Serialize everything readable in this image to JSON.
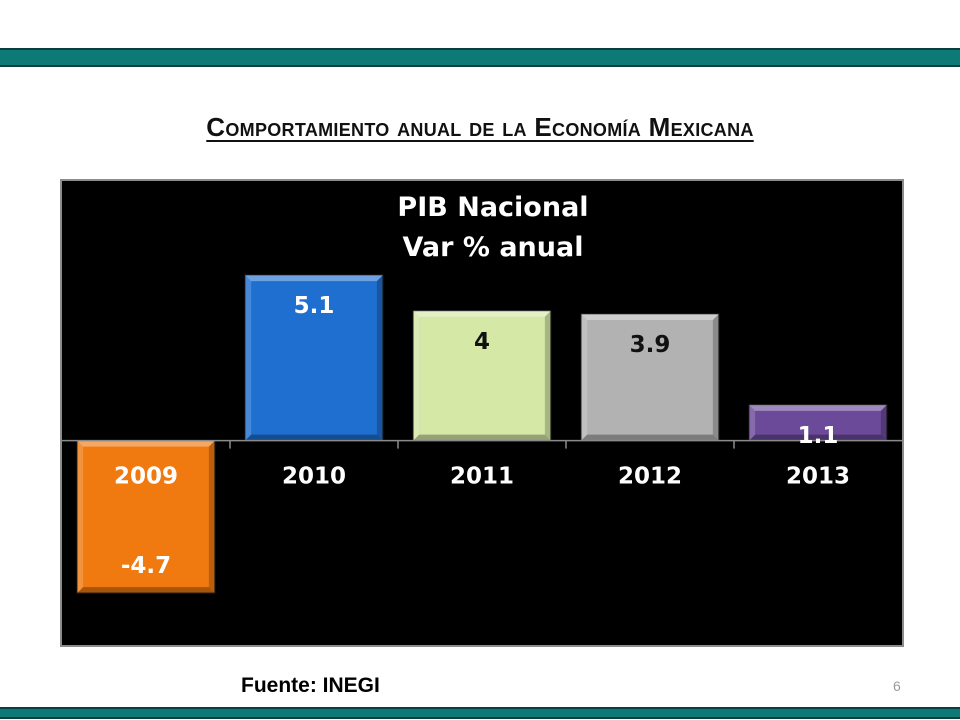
{
  "slide": {
    "title": "Comportamiento anual de la Economía Mexicana",
    "source": "Fuente: INEGI",
    "page_number": "6"
  },
  "colors": {
    "band": "#0e7a78",
    "chart_background": "#000000"
  },
  "chart_data": {
    "type": "bar",
    "title": "PIB Nacional",
    "subtitle": "Var % anual",
    "categories": [
      "2009",
      "2010",
      "2011",
      "2012",
      "2013"
    ],
    "values": [
      -4.7,
      5.1,
      4,
      3.9,
      1.1
    ],
    "value_labels": [
      "-4.7",
      "5.1",
      "4",
      "3.9",
      "1.1"
    ],
    "bar_colors": [
      "#f07a10",
      "#1f6fd0",
      "#d6e8a6",
      "#b2b2b2",
      "#6b4a9a"
    ],
    "label_colors": [
      "#ffffff",
      "#ffffff",
      "#111111",
      "#111111",
      "#ffffff"
    ],
    "ylim": [
      -6.3,
      8.0
    ],
    "grid": false,
    "legend": "none"
  }
}
